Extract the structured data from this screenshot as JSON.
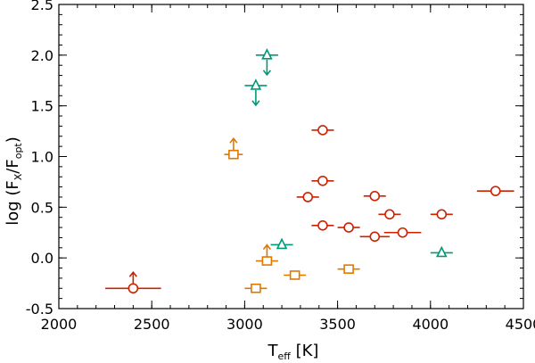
{
  "chart_data": {
    "type": "scatter",
    "title": "",
    "xlabel": "T_eff [K]",
    "ylabel": "log (F_X/F_opt)",
    "xlim": [
      2000,
      4500
    ],
    "ylim": [
      -0.5,
      2.5
    ],
    "xticks": [
      2000,
      2500,
      3000,
      3500,
      4000,
      4500
    ],
    "yticks": [
      -0.5,
      0.0,
      0.5,
      1.0,
      1.5,
      2.0,
      2.5
    ],
    "xtick_labels": [
      "2000",
      "2500",
      "3000",
      "3500",
      "4000",
      "4500"
    ],
    "ytick_labels": [
      "-0.5",
      "0.0",
      "0.5",
      "1.0",
      "1.5",
      "2.0",
      "2.5"
    ],
    "xlabel_parts": {
      "main": "T",
      "sub": "eff",
      "unit": "[K]"
    },
    "ylabel_parts": {
      "prefix": "log (F",
      "sub1": "X",
      "mid": "/F",
      "sub2": "opt",
      "suffix": ")"
    },
    "grid": false,
    "series": [
      {
        "name": "circles",
        "marker": "circle",
        "color": "#cc2200",
        "points": [
          {
            "x": 2400,
            "y": -0.3,
            "xerr": 150,
            "limit": "lower"
          },
          {
            "x": 3420,
            "y": 1.26,
            "xerr": 60
          },
          {
            "x": 3420,
            "y": 0.76,
            "xerr": 60
          },
          {
            "x": 3340,
            "y": 0.6,
            "xerr": 60
          },
          {
            "x": 3420,
            "y": 0.32,
            "xerr": 60
          },
          {
            "x": 3560,
            "y": 0.3,
            "xerr": 60
          },
          {
            "x": 3700,
            "y": 0.61,
            "xerr": 60
          },
          {
            "x": 3780,
            "y": 0.43,
            "xerr": 60
          },
          {
            "x": 3700,
            "y": 0.21,
            "xerr": 80
          },
          {
            "x": 3850,
            "y": 0.25,
            "xerr": 100
          },
          {
            "x": 4060,
            "y": 0.43,
            "xerr": 60
          },
          {
            "x": 4350,
            "y": 0.66,
            "xerr": 100
          }
        ]
      },
      {
        "name": "triangles",
        "marker": "triangle",
        "color": "#009977",
        "points": [
          {
            "x": 3120,
            "y": 2.0,
            "xerr": 60,
            "limit": "upper"
          },
          {
            "x": 3060,
            "y": 1.7,
            "xerr": 60,
            "limit": "upper"
          },
          {
            "x": 3200,
            "y": 0.13,
            "xerr": 60
          },
          {
            "x": 4060,
            "y": 0.05,
            "xerr": 60
          }
        ]
      },
      {
        "name": "squares",
        "marker": "square",
        "color": "#e07800",
        "points": [
          {
            "x": 2940,
            "y": 1.02,
            "xerr": 50,
            "limit": "lower"
          },
          {
            "x": 3120,
            "y": -0.03,
            "xerr": 60,
            "limit": "lower"
          },
          {
            "x": 3060,
            "y": -0.3,
            "xerr": 60
          },
          {
            "x": 3270,
            "y": -0.17,
            "xerr": 60
          },
          {
            "x": 3560,
            "y": -0.11,
            "xerr": 60
          }
        ]
      }
    ]
  }
}
